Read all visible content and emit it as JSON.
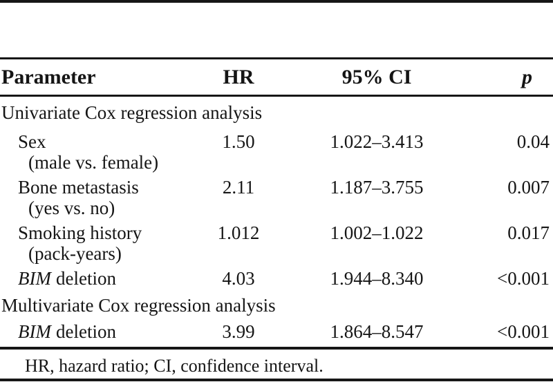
{
  "figure": {
    "kind": "statistical-table"
  },
  "table": {
    "headers": {
      "parameter": "Parameter",
      "hr": "HR",
      "ci": "95% CI",
      "p": "p"
    },
    "rows": [
      {
        "type": "section",
        "label": "Univariate Cox regression analysis"
      },
      {
        "type": "data",
        "parameter": "Sex",
        "sublabel": "(male vs. female)",
        "hr": "1.50",
        "ci": "1.022–3.413",
        "p": "0.04"
      },
      {
        "type": "data",
        "parameter": "Bone metastasis",
        "sublabel": "(yes vs. no)",
        "hr": "2.11",
        "ci": "1.187–3.755",
        "p": "0.007"
      },
      {
        "type": "data",
        "parameter": "Smoking history",
        "sublabel": "(pack-years)",
        "hr": "1.012",
        "ci": "1.002–1.022",
        "p": "0.017"
      },
      {
        "type": "data",
        "gene": "BIM",
        "rest": "deletion",
        "hr": "4.03",
        "ci": "1.944–8.340",
        "p": "<0.001"
      },
      {
        "type": "section",
        "label": "Multivariate Cox regression analysis"
      },
      {
        "type": "data",
        "gene": "BIM",
        "rest": "deletion",
        "hr": "3.99",
        "ci": "1.864–8.547",
        "p": "<0.001"
      }
    ],
    "footnote": "HR, hazard ratio; CI, confidence interval."
  },
  "colors": {
    "text": "#151515",
    "rule": "#161616",
    "background": "#ffffff"
  }
}
